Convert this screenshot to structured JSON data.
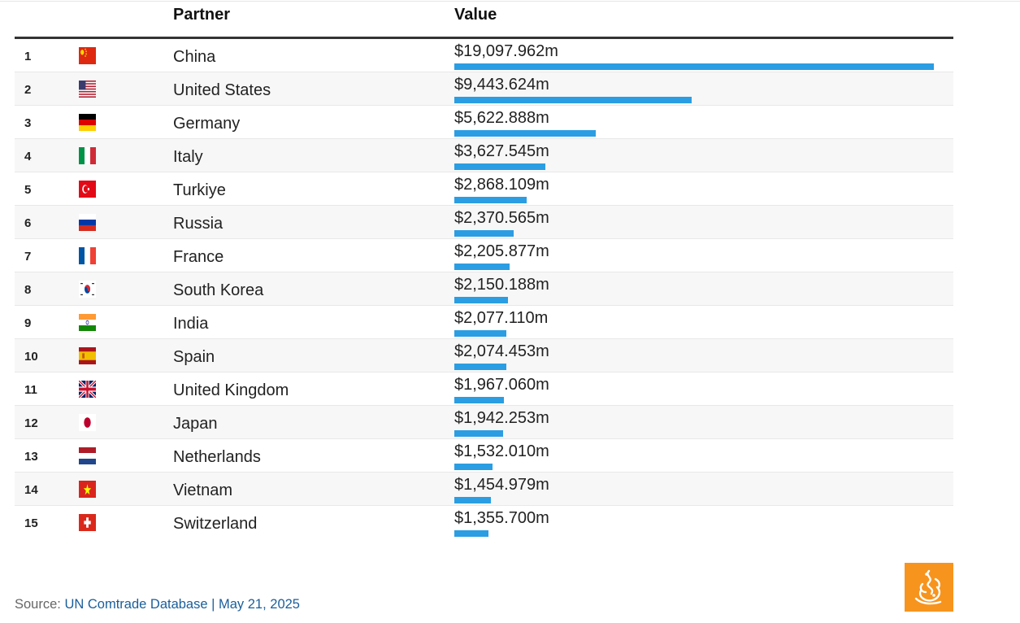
{
  "header": {
    "partner": "Partner",
    "value": "Value"
  },
  "chart_data": {
    "type": "bar",
    "orientation": "horizontal",
    "unit": "$m",
    "categories": [
      "China",
      "United States",
      "Germany",
      "Italy",
      "Turkiye",
      "Russia",
      "France",
      "South Korea",
      "India",
      "Spain",
      "United Kingdom",
      "Japan",
      "Netherlands",
      "Vietnam",
      "Switzerland"
    ],
    "values": [
      19097.962,
      9443.624,
      5622.888,
      3627.545,
      2868.109,
      2370.565,
      2205.877,
      2150.188,
      2077.11,
      2074.453,
      1967.06,
      1942.253,
      1532.01,
      1454.979,
      1355.7
    ],
    "bar_color": "#2b9de3"
  },
  "rows": [
    {
      "rank": "1",
      "flag": "cn",
      "partner": "China",
      "value": "$19,097.962m"
    },
    {
      "rank": "2",
      "flag": "us",
      "partner": "United States",
      "value": "$9,443.624m"
    },
    {
      "rank": "3",
      "flag": "de",
      "partner": "Germany",
      "value": "$5,622.888m"
    },
    {
      "rank": "4",
      "flag": "it",
      "partner": "Italy",
      "value": "$3,627.545m"
    },
    {
      "rank": "5",
      "flag": "tr",
      "partner": "Turkiye",
      "value": "$2,868.109m"
    },
    {
      "rank": "6",
      "flag": "ru",
      "partner": "Russia",
      "value": "$2,370.565m"
    },
    {
      "rank": "7",
      "flag": "fr",
      "partner": "France",
      "value": "$2,205.877m"
    },
    {
      "rank": "8",
      "flag": "kr",
      "partner": "South Korea",
      "value": "$2,150.188m"
    },
    {
      "rank": "9",
      "flag": "in",
      "partner": "India",
      "value": "$2,077.110m"
    },
    {
      "rank": "10",
      "flag": "es",
      "partner": "Spain",
      "value": "$2,074.453m"
    },
    {
      "rank": "11",
      "flag": "gb",
      "partner": "United Kingdom",
      "value": "$1,967.060m"
    },
    {
      "rank": "12",
      "flag": "jp",
      "partner": "Japan",
      "value": "$1,942.253m"
    },
    {
      "rank": "13",
      "flag": "nl",
      "partner": "Netherlands",
      "value": "$1,532.010m"
    },
    {
      "rank": "14",
      "flag": "vn",
      "partner": "Vietnam",
      "value": "$1,454.979m"
    },
    {
      "rank": "15",
      "flag": "ch",
      "partner": "Switzerland",
      "value": "$1,355.700m"
    }
  ],
  "footer": {
    "prefix": "Source: ",
    "source": "UN Comtrade Database | May 21, 2025"
  },
  "logo": {
    "icon": "al-jazeera-logo",
    "color": "#f7941d"
  }
}
